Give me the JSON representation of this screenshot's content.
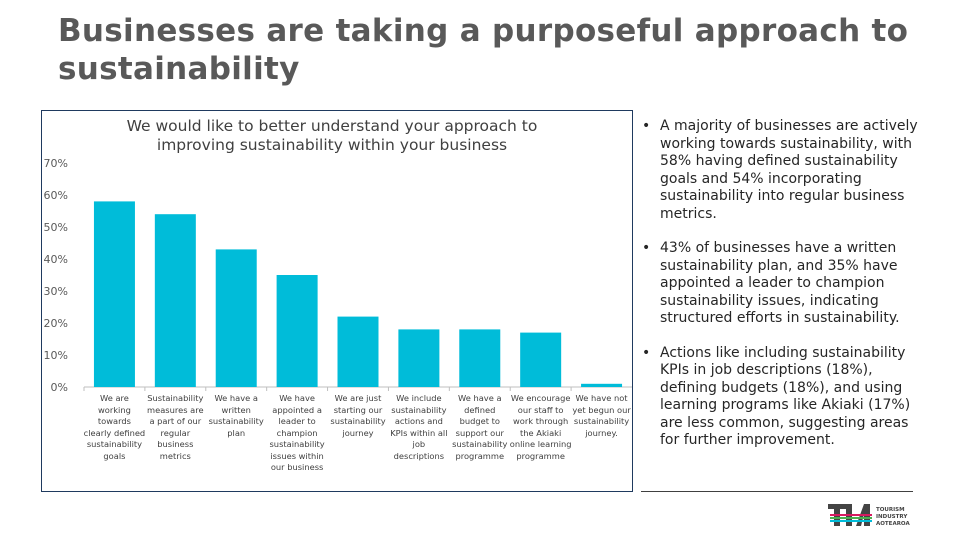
{
  "slide": {
    "title": "Businesses are taking a purposeful approach to sustainability"
  },
  "chart_data": {
    "type": "bar",
    "title": "We would like to better understand your approach to improving sustainability within your business",
    "categories": [
      "We are working towards clearly defined sustainability goals",
      "Sustainability measures are a part of our regular business metrics",
      "We have a written sustainability plan",
      "We have appointed a leader to champion sustainability issues within our business",
      "We are just starting our sustainability journey",
      "We include sustainability actions and KPIs within all job descriptions",
      "We have a defined budget to support our sustainability programme",
      "We encourage our staff to work through the Akiaki online learning programme",
      "We have not yet begun our sustainability journey."
    ],
    "values": [
      58,
      54,
      43,
      35,
      22,
      18,
      18,
      17,
      1
    ],
    "ylim": [
      0,
      70
    ],
    "yticks": [
      "0%",
      "10%",
      "20%",
      "30%",
      "40%",
      "50%",
      "60%",
      "70%"
    ],
    "bar_color": "#00BCD9",
    "grid": false,
    "xlabel": "",
    "ylabel": ""
  },
  "bullets": [
    "A majority of businesses are actively working towards sustainability, with 58% having defined sustainability goals and 54% incorporating sustainability into regular business metrics.",
    "43% of businesses have a written sustainability plan, and 35% have appointed a leader to champion sustainability issues, indicating structured efforts in sustainability.",
    "Actions like including sustainability KPIs in job descriptions (18%), defining budgets (18%), and using learning programs like Akiaki (17%) are less common, suggesting areas for further improvement."
  ],
  "bullet_marker": "•",
  "logo": {
    "mark": "TIA",
    "text": "TOURISM INDUSTRY AOTEAROA"
  }
}
